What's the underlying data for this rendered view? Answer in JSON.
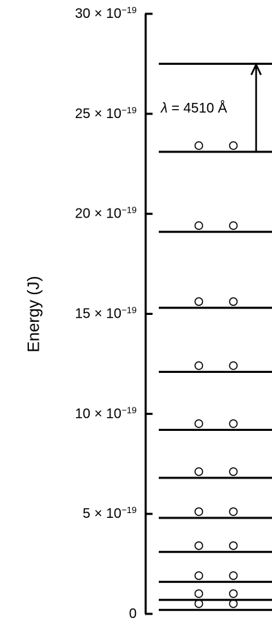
{
  "diagram": {
    "y_axis_label": "Energy (J)",
    "y_min": 0,
    "y_max": 30,
    "y_unit_exponent": -19,
    "ticks": [
      {
        "value": 0,
        "label_main": "0",
        "label_exp": ""
      },
      {
        "value": 5,
        "label_main": "5 × 10",
        "label_exp": "−19"
      },
      {
        "value": 10,
        "label_main": "10 × 10",
        "label_exp": "−19"
      },
      {
        "value": 15,
        "label_main": "15 × 10",
        "label_exp": "−19"
      },
      {
        "value": 20,
        "label_main": "20 × 10",
        "label_exp": "−19"
      },
      {
        "value": 25,
        "label_main": "25 × 10",
        "label_exp": "−19"
      },
      {
        "value": 30,
        "label_main": "30 × 10",
        "label_exp": "−19"
      }
    ],
    "energy_levels": [
      {
        "energy": 0.2,
        "electrons": 2
      },
      {
        "energy": 0.7,
        "electrons": 2
      },
      {
        "energy": 1.6,
        "electrons": 2
      },
      {
        "energy": 3.1,
        "electrons": 2
      },
      {
        "energy": 4.8,
        "electrons": 2
      },
      {
        "energy": 6.8,
        "electrons": 2
      },
      {
        "energy": 9.2,
        "electrons": 2
      },
      {
        "energy": 12.1,
        "electrons": 2
      },
      {
        "energy": 15.3,
        "electrons": 2
      },
      {
        "energy": 19.1,
        "electrons": 2
      },
      {
        "energy": 23.1,
        "electrons": 2
      },
      {
        "energy": 27.5,
        "electrons": 0
      }
    ],
    "transition": {
      "from_energy": 23.1,
      "to_energy": 27.5,
      "label_symbol": "λ",
      "label_value": " = 4510 Å"
    },
    "colors": {
      "line": "#000000",
      "background": "#ffffff"
    }
  }
}
